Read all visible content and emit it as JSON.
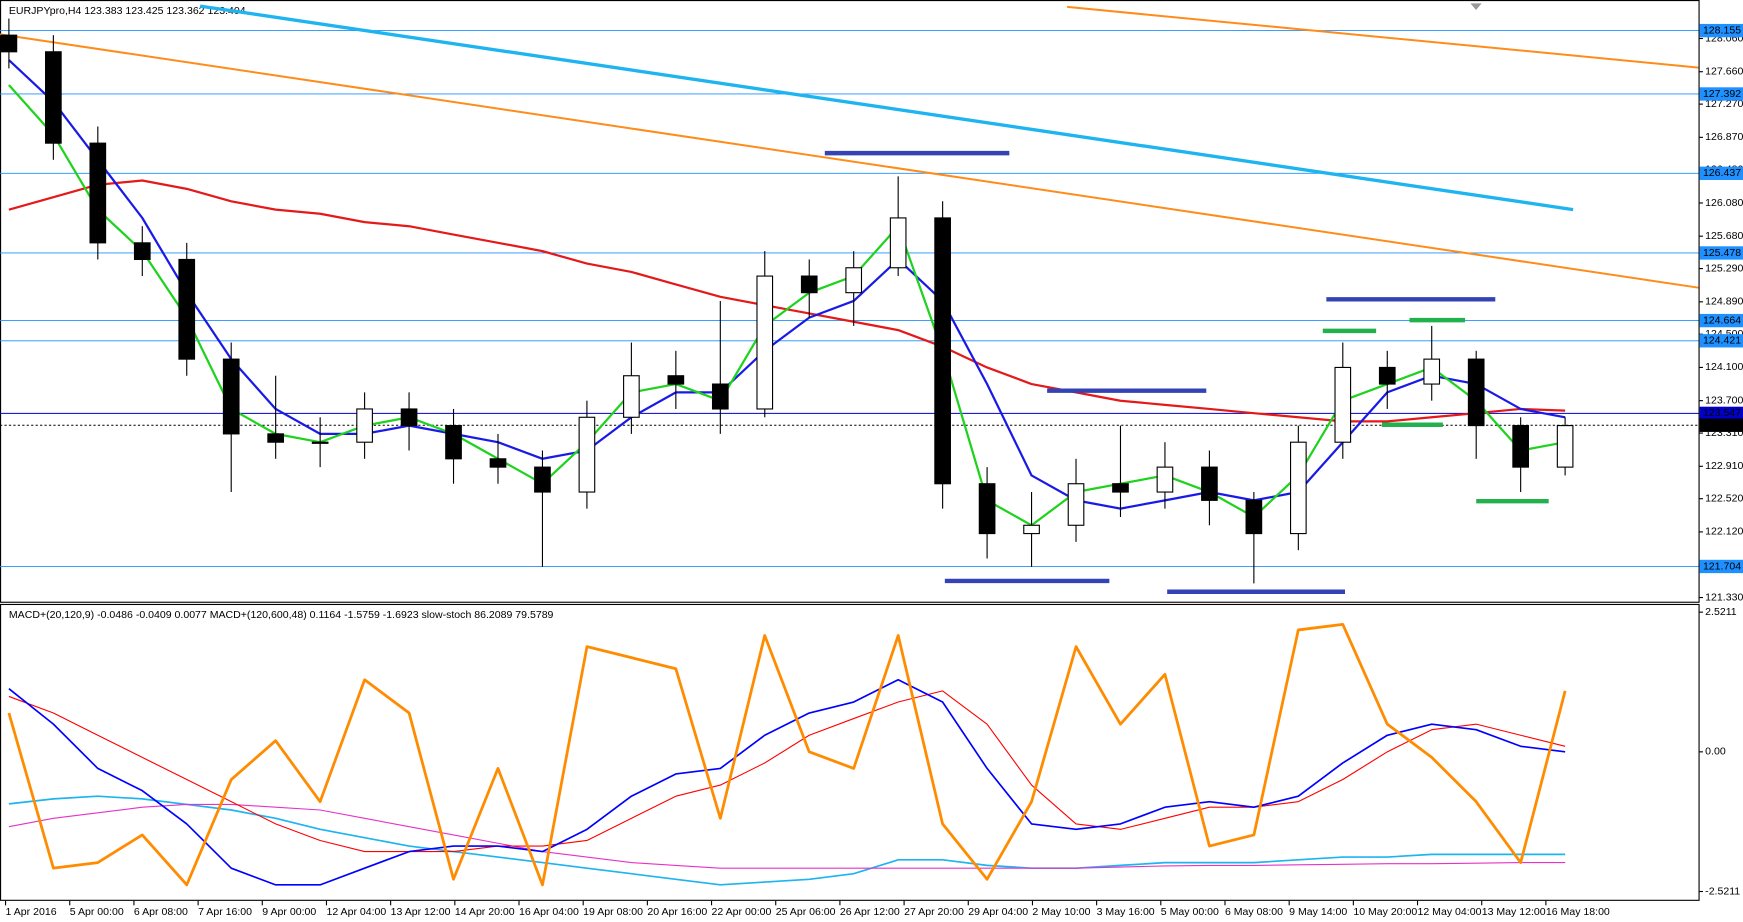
{
  "chart_data": [
    {
      "type": "candlestick",
      "title": "EURJPYpro,H4  123.383 123.425 123.362 123.404",
      "xlim": [
        -0.2,
        38.0
      ],
      "ylim": [
        121.28,
        128.51
      ],
      "yticks": [
        {
          "value": 128.06,
          "label": "128.060"
        },
        {
          "value": 127.66,
          "label": "127.660"
        },
        {
          "value": 127.27,
          "label": "127.270"
        },
        {
          "value": 126.87,
          "label": "126.870"
        },
        {
          "value": 126.48,
          "label": "126.480"
        },
        {
          "value": 126.08,
          "label": "126.080"
        },
        {
          "value": 125.68,
          "label": "125.680"
        },
        {
          "value": 125.29,
          "label": "125.290"
        },
        {
          "value": 124.89,
          "label": "124.890"
        },
        {
          "value": 124.5,
          "label": "124.500"
        },
        {
          "value": 124.1,
          "label": "124.100"
        },
        {
          "value": 123.7,
          "label": "123.700"
        },
        {
          "value": 123.31,
          "label": "123.310"
        },
        {
          "value": 122.91,
          "label": "122.910"
        },
        {
          "value": 122.52,
          "label": "122.520"
        },
        {
          "value": 122.12,
          "label": "122.120"
        },
        {
          "value": 121.72,
          "label": "121.720"
        },
        {
          "value": 121.33,
          "label": "121.330"
        }
      ],
      "time_labels": [
        "1 Apr 2016",
        "5 Apr 00:00",
        "6 Apr 08:00",
        "7 Apr 16:00",
        "9 Apr 00:00",
        "12 Apr 04:00",
        "13 Apr 12:00",
        "14 Apr 20:00",
        "16 Apr 04:00",
        "19 Apr 08:00",
        "20 Apr 16:00",
        "22 Apr 00:00",
        "25 Apr 06:00",
        "26 Apr 12:00",
        "27 Apr 20:00",
        "29 Apr 04:00",
        "2 May 10:00",
        "3 May 16:00",
        "5 May 00:00",
        "6 May 08:00",
        "9 May 14:00",
        "10 May 20:00",
        "12 May 04:00",
        "13 May 12:00",
        "16 May 18:00"
      ],
      "open": [
        128.1,
        127.9,
        126.8,
        125.6,
        125.4,
        124.2,
        123.3,
        123.2,
        123.2,
        123.6,
        123.4,
        123.0,
        122.9,
        122.6,
        123.5,
        124.0,
        123.9,
        123.6,
        125.2,
        125.0,
        125.3,
        125.9,
        122.7,
        122.1,
        122.2,
        122.7,
        122.6,
        122.9,
        122.5,
        122.1,
        123.2,
        124.1,
        123.9,
        124.2,
        123.4,
        122.9
      ],
      "high": [
        128.3,
        128.1,
        127.0,
        125.8,
        125.6,
        124.4,
        124.0,
        123.5,
        123.8,
        123.8,
        123.6,
        123.3,
        123.1,
        123.7,
        124.4,
        124.3,
        124.9,
        125.5,
        125.4,
        125.5,
        126.4,
        126.1,
        122.9,
        122.6,
        123.0,
        123.4,
        123.2,
        123.1,
        122.6,
        123.4,
        124.4,
        124.3,
        124.6,
        124.3,
        123.5,
        123.5
      ],
      "low": [
        127.7,
        126.6,
        125.4,
        125.2,
        124.0,
        122.6,
        123.0,
        122.9,
        123.0,
        123.1,
        122.7,
        122.7,
        121.7,
        122.4,
        123.3,
        123.6,
        123.3,
        123.5,
        124.7,
        124.6,
        125.2,
        122.4,
        121.8,
        121.7,
        122.0,
        122.3,
        122.4,
        122.2,
        121.5,
        121.9,
        123.0,
        123.6,
        123.7,
        123.0,
        122.6,
        122.8
      ],
      "close": [
        127.9,
        126.8,
        125.6,
        125.4,
        124.2,
        123.3,
        123.2,
        123.2,
        123.6,
        123.4,
        123.0,
        122.9,
        122.6,
        123.5,
        124.0,
        123.9,
        123.6,
        125.2,
        125.0,
        125.3,
        125.9,
        122.7,
        122.1,
        122.2,
        122.7,
        122.6,
        122.9,
        122.5,
        122.1,
        123.2,
        124.1,
        123.9,
        124.2,
        123.4,
        122.9,
        123.4
      ],
      "levels": [
        {
          "value": 128.155,
          "color": "#1e90ff"
        },
        {
          "value": 127.392,
          "color": "#1e90ff"
        },
        {
          "value": 126.437,
          "color": "#1e90ff"
        },
        {
          "value": 125.478,
          "color": "#1e90ff"
        },
        {
          "value": 124.664,
          "color": "#1e90ff"
        },
        {
          "value": 124.421,
          "color": "#1e90ff"
        },
        {
          "value": 123.547,
          "color": "#0000c8"
        },
        {
          "value": 123.404,
          "color": "#000000"
        },
        {
          "value": 121.704,
          "color": "#1e90ff"
        }
      ],
      "trendlines": [
        {
          "color": "#ff8c1a",
          "x": [
            -0.2,
            38.0
          ],
          "y": [
            128.11,
            125.06
          ]
        },
        {
          "color": "#ff8c1a",
          "x": [
            23.8,
            38.0
          ],
          "y": [
            128.44,
            127.71
          ]
        },
        {
          "color": "#1eb4f0",
          "x": [
            4.3,
            35.18
          ],
          "y": [
            128.45,
            126.0
          ]
        }
      ],
      "segments": [
        {
          "color": "#3342b5",
          "x": [
            18.35,
            22.5
          ],
          "y": 126.68
        },
        {
          "color": "#3342b5",
          "x": [
            23.35,
            26.93
          ],
          "y": 123.82
        },
        {
          "color": "#3342b5",
          "x": [
            29.63,
            33.43
          ],
          "y": 124.92
        },
        {
          "color": "#3342b5",
          "x": [
            21.05,
            24.75
          ],
          "y": 121.53
        },
        {
          "color": "#3342b5",
          "x": [
            26.05,
            30.05
          ],
          "y": 121.4
        },
        {
          "color": "#22b14c",
          "x": [
            29.55,
            30.75
          ],
          "y": 124.54
        },
        {
          "color": "#22b14c",
          "x": [
            31.5,
            32.75
          ],
          "y": 124.67
        },
        {
          "color": "#22b14c",
          "x": [
            30.88,
            32.25
          ],
          "y": 123.41
        },
        {
          "color": "#22b14c",
          "x": [
            33.0,
            34.63
          ],
          "y": 122.49
        }
      ],
      "lines": [
        {
          "color": "#e41a1a",
          "values": [
            126.0,
            126.15,
            126.3,
            126.35,
            126.25,
            126.1,
            126.0,
            125.95,
            125.85,
            125.8,
            125.7,
            125.6,
            125.5,
            125.35,
            125.25,
            125.1,
            124.95,
            124.85,
            124.75,
            124.65,
            124.55,
            124.35,
            124.1,
            123.9,
            123.8,
            123.7,
            123.65,
            123.6,
            123.55,
            123.5,
            123.45,
            123.45,
            123.5,
            123.55,
            123.6,
            123.58
          ]
        },
        {
          "color": "#1a1ae6",
          "values": [
            127.8,
            127.3,
            126.6,
            125.9,
            125.0,
            124.2,
            123.6,
            123.3,
            123.3,
            123.4,
            123.3,
            123.2,
            123.0,
            123.1,
            123.5,
            123.8,
            123.8,
            124.3,
            124.7,
            124.9,
            125.4,
            124.9,
            123.9,
            122.8,
            122.5,
            122.4,
            122.5,
            122.6,
            122.5,
            122.6,
            123.2,
            123.8,
            124.0,
            123.9,
            123.6,
            123.5
          ]
        },
        {
          "color": "#1ed21e",
          "values": [
            127.5,
            126.9,
            126.0,
            125.5,
            124.7,
            123.6,
            123.3,
            123.2,
            123.4,
            123.5,
            123.3,
            123.0,
            122.7,
            123.2,
            123.8,
            123.9,
            123.7,
            124.6,
            125.0,
            125.2,
            125.8,
            124.3,
            122.5,
            122.2,
            122.6,
            122.7,
            122.8,
            122.6,
            122.3,
            122.8,
            123.7,
            123.9,
            124.1,
            123.7,
            123.1,
            123.2
          ]
        }
      ]
    },
    {
      "type": "indicator",
      "title": "MACD+(20,120,9) -0.0486 -0.0409 0.0077  MACD+(120,600,48) 0.1164 -1.5759 -1.6923  slow-stoch 86.2089 79.5789",
      "xlim": [
        -0.2,
        38.0
      ],
      "ylim": [
        -2.69,
        2.65
      ],
      "yticks": [
        2.5211,
        {
          "value": 0,
          "label": "0.00"
        },
        -2.5211
      ],
      "lines": [
        {
          "color": "#1eb4f0",
          "width": 1.5,
          "values": [
            -0.94,
            -0.85,
            -0.8,
            -0.85,
            -0.95,
            -1.05,
            -1.2,
            -1.4,
            -1.55,
            -1.7,
            -1.8,
            -1.9,
            -2.0,
            -2.1,
            -2.2,
            -2.3,
            -2.4,
            -2.35,
            -2.3,
            -2.2,
            -1.95,
            -1.95,
            -2.05,
            -2.1,
            -2.1,
            -2.05,
            -2.0,
            -2.0,
            -2.0,
            -1.95,
            -1.9,
            -1.9,
            -1.85,
            -1.85,
            -1.85,
            -1.85
          ]
        },
        {
          "color": "#e632c8",
          "width": 1,
          "values": [
            -1.35,
            -1.2,
            -1.1,
            -1.0,
            -0.95,
            -0.95,
            -1.0,
            -1.05,
            -1.2,
            -1.35,
            -1.5,
            -1.65,
            -1.8,
            -1.9,
            -2.0,
            -2.05,
            -2.1,
            -2.1,
            -2.1,
            -2.1,
            -2.1,
            -2.1,
            -2.1,
            -2.1,
            -2.1,
            -2.08,
            -2.06,
            -2.05,
            -2.05,
            -2.04,
            -2.03,
            -2.02,
            -2.02,
            -2.01,
            -2.0,
            -2.0
          ]
        },
        {
          "color": "#ff0000",
          "width": 1,
          "values": [
            1.0,
            0.7,
            0.3,
            -0.1,
            -0.5,
            -0.9,
            -1.3,
            -1.6,
            -1.8,
            -1.8,
            -1.8,
            -1.7,
            -1.7,
            -1.6,
            -1.2,
            -0.8,
            -0.6,
            -0.2,
            0.3,
            0.6,
            0.9,
            1.1,
            0.5,
            -0.6,
            -1.3,
            -1.4,
            -1.2,
            -1.0,
            -1.0,
            -0.9,
            -0.5,
            0.0,
            0.4,
            0.5,
            0.3,
            0.1
          ]
        },
        {
          "color": "#0000ff",
          "width": 1.5,
          "values": [
            1.14,
            0.5,
            -0.3,
            -0.7,
            -1.3,
            -2.1,
            -2.4,
            -2.4,
            -2.1,
            -1.8,
            -1.7,
            -1.7,
            -1.8,
            -1.4,
            -0.8,
            -0.4,
            -0.3,
            0.3,
            0.7,
            0.9,
            1.3,
            0.9,
            -0.3,
            -1.3,
            -1.4,
            -1.3,
            -1.0,
            -0.9,
            -1.0,
            -0.8,
            -0.2,
            0.3,
            0.5,
            0.4,
            0.1,
            0.0
          ]
        },
        {
          "color": "#ff8c00",
          "width": 2.5,
          "values": [
            0.7,
            -2.1,
            -2.0,
            -1.5,
            -2.4,
            -0.5,
            0.2,
            -0.9,
            1.3,
            0.7,
            -2.3,
            -0.3,
            -2.4,
            1.9,
            1.7,
            1.5,
            -1.2,
            2.1,
            0.0,
            -0.3,
            2.1,
            -1.3,
            -2.3,
            -0.9,
            1.9,
            0.5,
            1.4,
            -1.7,
            -1.5,
            2.2,
            2.3,
            0.5,
            -0.1,
            -0.9,
            -2.0,
            1.1
          ]
        }
      ]
    }
  ]
}
